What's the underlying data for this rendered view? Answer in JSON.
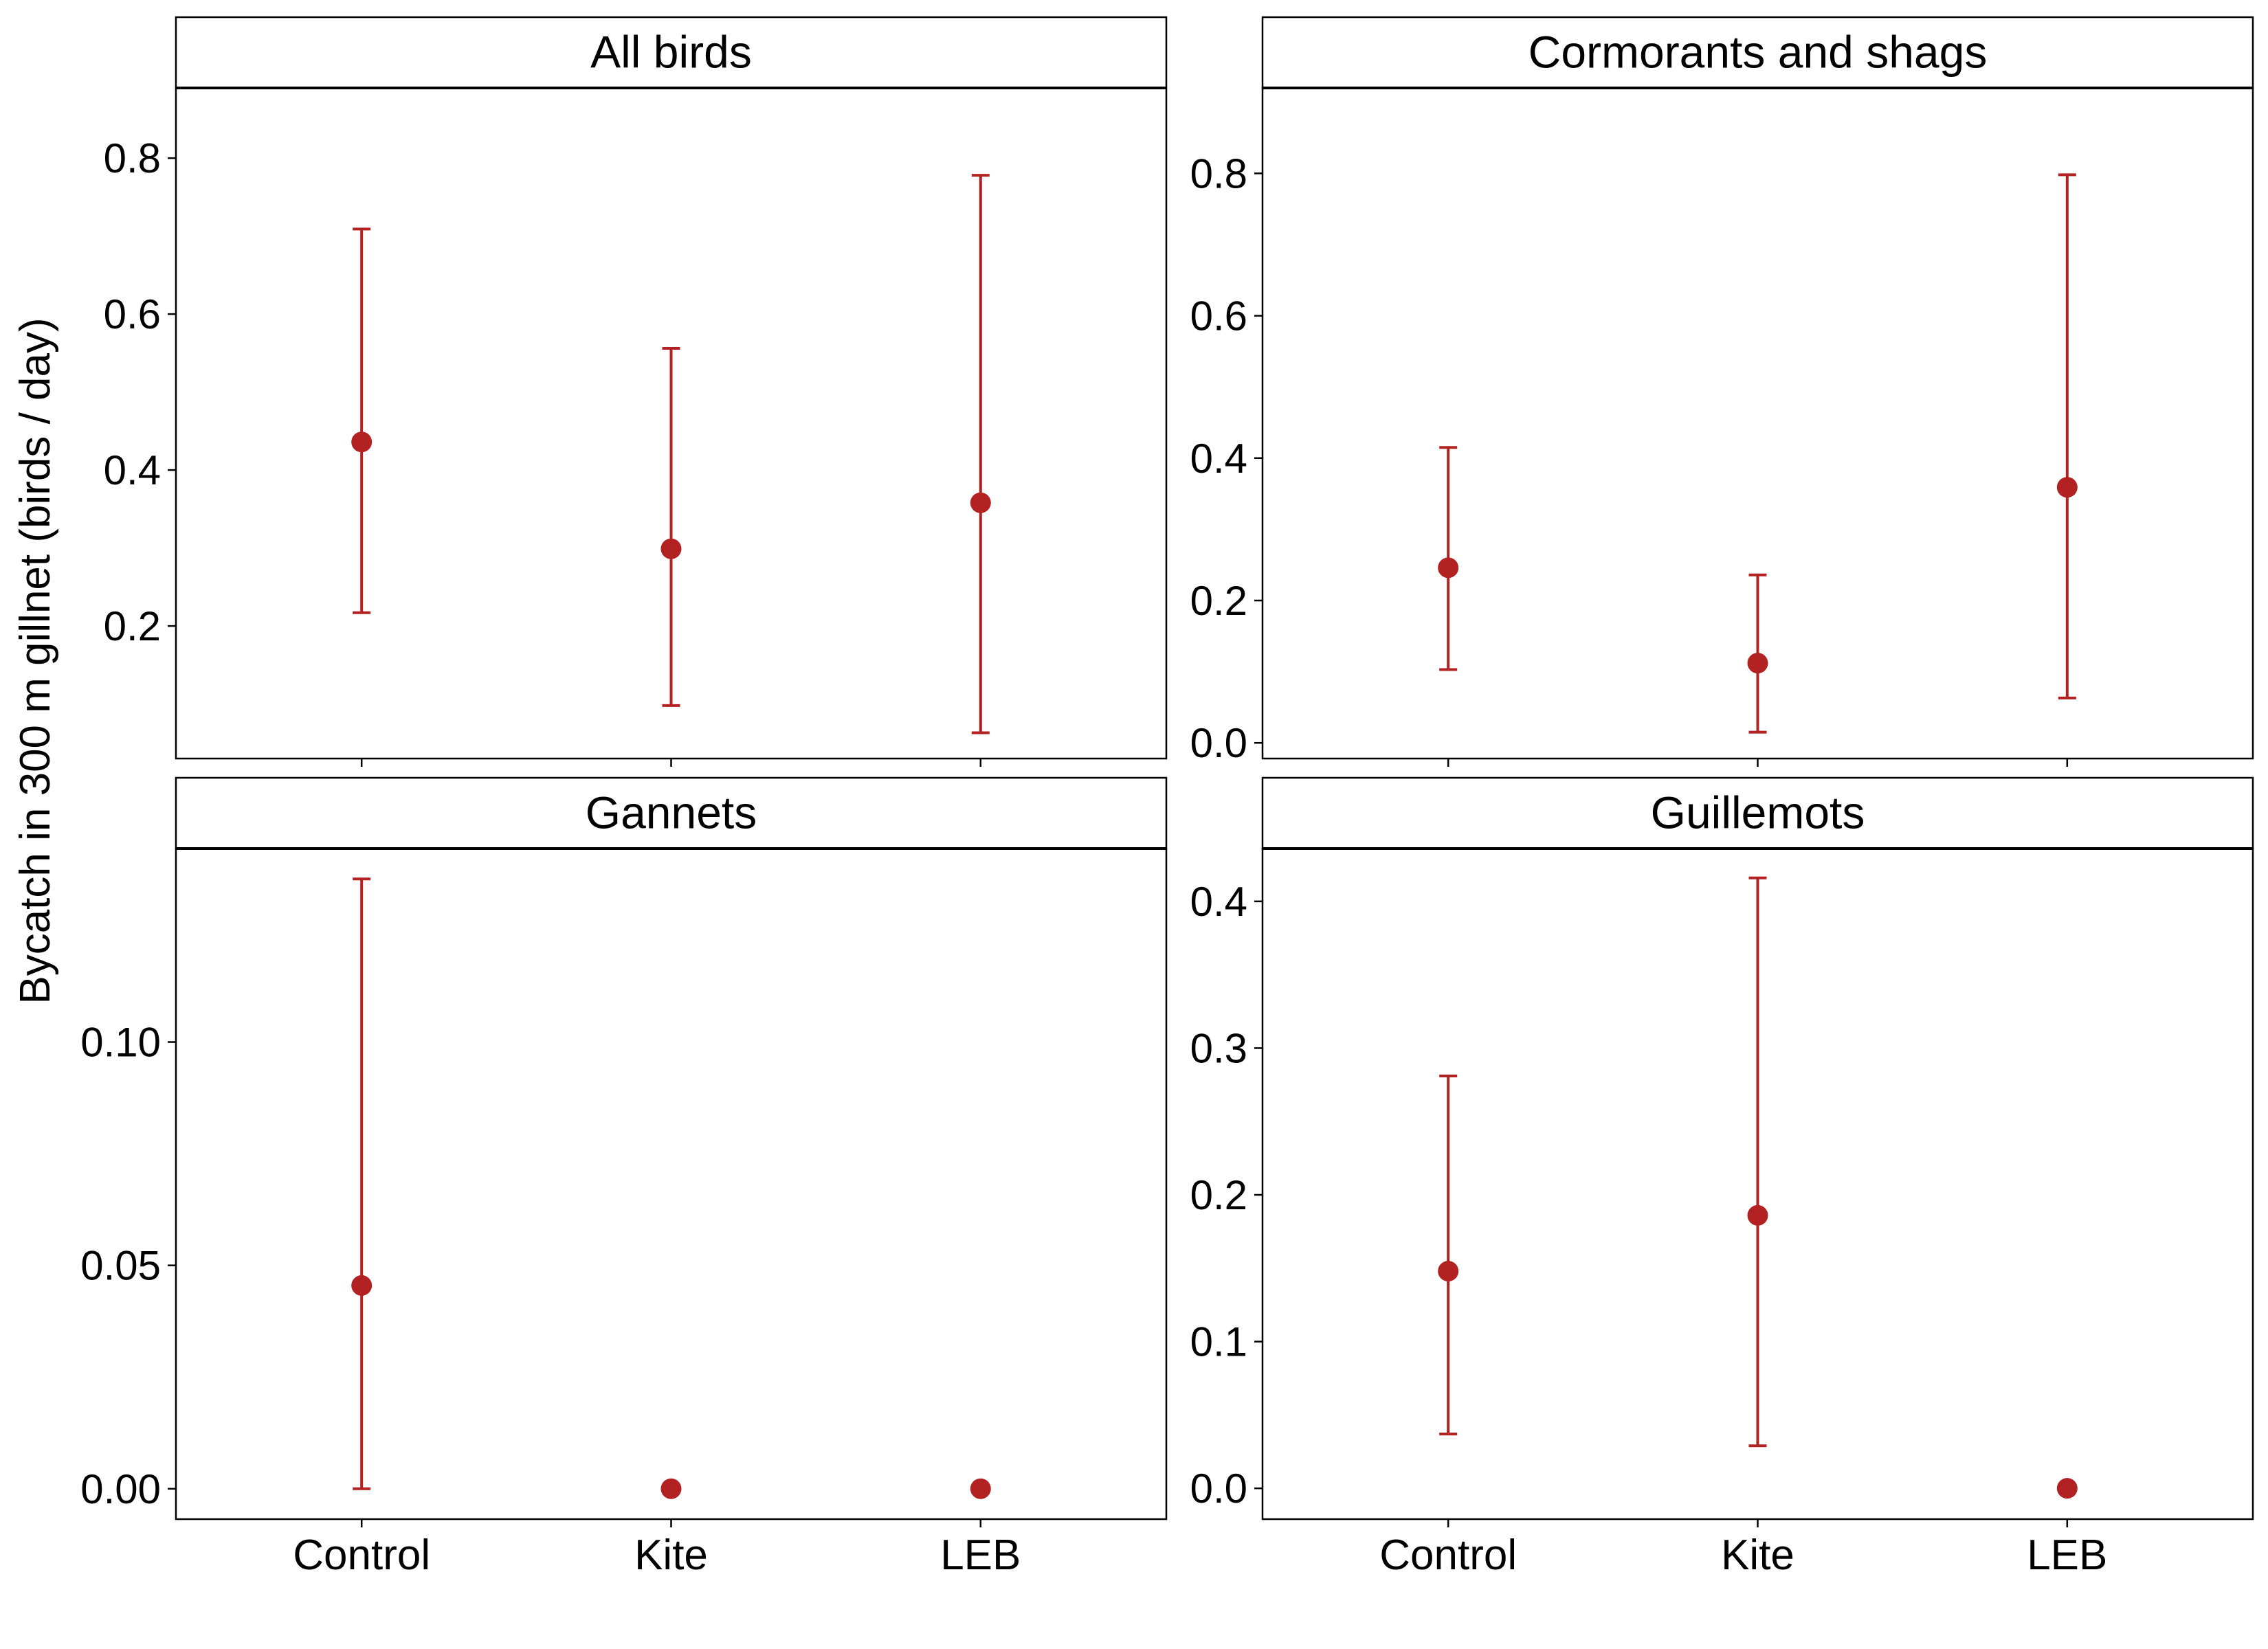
{
  "ylabel": "Bycatch in 300 m gillnet (birds / day)",
  "colors": {
    "point": "#b22222",
    "frame": "#000000"
  },
  "chart_data": [
    {
      "type": "scatter",
      "title": "All birds",
      "categories": [
        "Control",
        "Kite",
        "LEB"
      ],
      "values": [
        0.436,
        0.299,
        0.358
      ],
      "lower": [
        0.217,
        0.098,
        0.063
      ],
      "upper": [
        0.709,
        0.556,
        0.778
      ],
      "ylim": [
        0.03,
        0.89
      ],
      "yticks": [
        0.2,
        0.4,
        0.6,
        0.8
      ],
      "ytick_labels": [
        "0.2",
        "0.4",
        "0.6",
        "0.8"
      ],
      "xtick_labels_shown": false
    },
    {
      "type": "scatter",
      "title": "Cormorants and shags",
      "categories": [
        "Control",
        "Kite",
        "LEB"
      ],
      "values": [
        0.246,
        0.112,
        0.359
      ],
      "lower": [
        0.103,
        0.015,
        0.063
      ],
      "upper": [
        0.415,
        0.236,
        0.798
      ],
      "ylim": [
        -0.022,
        0.92
      ],
      "yticks": [
        0.0,
        0.2,
        0.4,
        0.6,
        0.8
      ],
      "ytick_labels": [
        "0.0",
        "0.2",
        "0.4",
        "0.6",
        "0.8"
      ],
      "xtick_labels_shown": false
    },
    {
      "type": "scatter",
      "title": "Gannets",
      "categories": [
        "Control",
        "Kite",
        "LEB"
      ],
      "values": [
        0.0455,
        0.0,
        0.0
      ],
      "lower": [
        0.0,
        null,
        null
      ],
      "upper": [
        0.1365,
        null,
        null
      ],
      "ylim": [
        -0.0068,
        0.1433
      ],
      "yticks": [
        0.0,
        0.05,
        0.1
      ],
      "ytick_labels": [
        "0.00",
        "0.05",
        "0.10"
      ],
      "xtick_labels_shown": true
    },
    {
      "type": "scatter",
      "title": "Guillemots",
      "categories": [
        "Control",
        "Kite",
        "LEB"
      ],
      "values": [
        0.148,
        0.186,
        0.0
      ],
      "lower": [
        0.037,
        0.029,
        null
      ],
      "upper": [
        0.281,
        0.416,
        null
      ],
      "ylim": [
        -0.021,
        0.436
      ],
      "yticks": [
        0.0,
        0.1,
        0.2,
        0.3,
        0.4
      ],
      "ytick_labels": [
        "0.0",
        "0.1",
        "0.2",
        "0.3",
        "0.4"
      ],
      "xtick_labels_shown": true
    }
  ]
}
